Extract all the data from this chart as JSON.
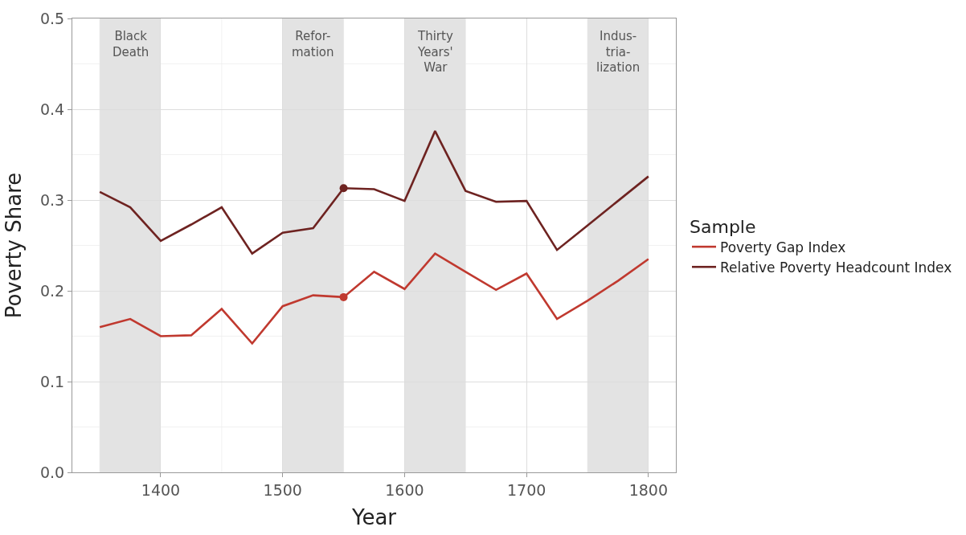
{
  "chart_data": {
    "type": "line",
    "xlabel": "Year",
    "ylabel": "Poverty Share",
    "legend_title": "Sample",
    "legend": "right",
    "grid": true,
    "x": [
      1350,
      1375,
      1400,
      1425,
      1450,
      1475,
      1500,
      1525,
      1550,
      1575,
      1600,
      1625,
      1650,
      1675,
      1700,
      1725,
      1750,
      1775,
      1800
    ],
    "series": [
      {
        "name": "Poverty Gap Index",
        "color": "#c0392f",
        "values": [
          0.16,
          0.169,
          0.15,
          0.151,
          0.18,
          0.142,
          0.183,
          0.195,
          0.193,
          0.221,
          0.202,
          0.241,
          0.221,
          0.201,
          0.219,
          0.169,
          0.189,
          0.211,
          0.235
        ]
      },
      {
        "name": "Relative Poverty Headcount Index",
        "color": "#6e2321",
        "values": [
          0.309,
          0.292,
          0.255,
          0.273,
          0.292,
          0.241,
          0.264,
          0.269,
          0.313,
          0.312,
          0.299,
          0.376,
          0.31,
          0.298,
          0.299,
          0.245,
          0.272,
          0.299,
          0.326
        ]
      },
      {
        "type": "scatter",
        "color": "#c0392f",
        "x": [
          1550
        ],
        "values": [
          0.193
        ]
      },
      {
        "type": "scatter",
        "color": "#6e2321",
        "x": [
          1550
        ],
        "values": [
          0.313
        ]
      }
    ],
    "bands": [
      {
        "axis": "x",
        "from": 1350,
        "to": 1400,
        "label": "Black\nDeath",
        "color": "#e3e3e3"
      },
      {
        "axis": "x",
        "from": 1500,
        "to": 1550,
        "label": "Refor-\nmation",
        "color": "#e3e3e3"
      },
      {
        "axis": "x",
        "from": 1600,
        "to": 1650,
        "label": "Thirty\nYears'\nWar",
        "color": "#e3e3e3"
      },
      {
        "axis": "x",
        "from": 1750,
        "to": 1800,
        "label": "Indus-\ntria-\nlization",
        "color": "#e3e3e3"
      }
    ],
    "xlim": [
      1327.5,
      1822.5
    ],
    "xticks": [
      1400,
      1500,
      1600,
      1700,
      1800
    ],
    "ylim": [
      0,
      0.5
    ],
    "yticks": [
      "0.0",
      0.1,
      0.2,
      0.3,
      0.4,
      0.5
    ]
  }
}
